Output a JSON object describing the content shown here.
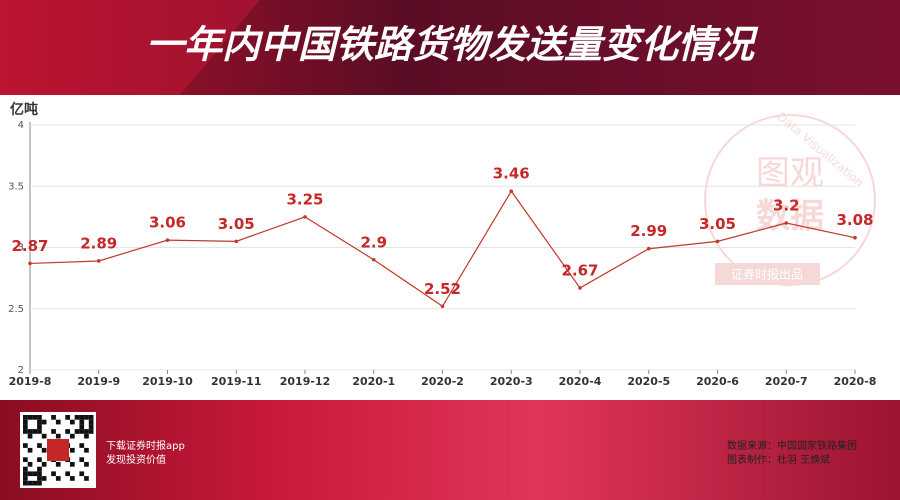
{
  "header": {
    "title": "一年内中国铁路货物发送量变化情况"
  },
  "chart_data": {
    "type": "line",
    "y_label": "亿吨",
    "categories": [
      "2019-8",
      "2019-9",
      "2019-10",
      "2019-11",
      "2019-12",
      "2020-1",
      "2020-2",
      "2020-3",
      "2020-4",
      "2020-5",
      "2020-6",
      "2020-7",
      "2020-8"
    ],
    "values": [
      2.87,
      2.89,
      3.06,
      3.05,
      3.25,
      2.9,
      2.52,
      3.46,
      2.67,
      2.99,
      3.05,
      3.2,
      3.08
    ],
    "color": "#c0392b",
    "label_color": "#c62828",
    "ylim": [
      2,
      4
    ],
    "yticks": [
      2,
      2.5,
      3,
      3.5,
      4
    ],
    "grid": true
  },
  "watermark": {
    "en": "Data Visualization",
    "cn1": "图观",
    "cn2": "数据",
    "producer": "证券时报出品"
  },
  "footer": {
    "app1": "下载证券时报app",
    "app2": "发现投资价值",
    "source": "数据来源：中国国家铁路集团",
    "maker": "图表制作：杜羽 王焕斌"
  }
}
